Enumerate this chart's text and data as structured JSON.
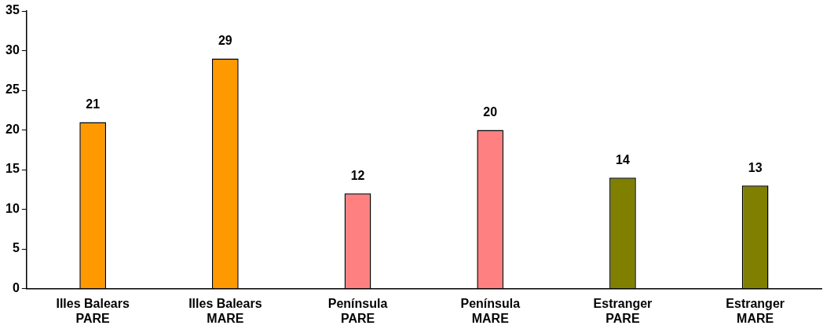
{
  "chart_data": {
    "type": "bar",
    "categories": [
      "Illes Balears\nPARE",
      "Illes Balears\nMARE",
      "Península\nPARE",
      "Península\nMARE",
      "Estranger\nPARE",
      "Estranger\nMARE"
    ],
    "values": [
      21,
      29,
      12,
      20,
      14,
      13
    ],
    "colors": [
      "#ff9900",
      "#ff9900",
      "#ff8080",
      "#ff8080",
      "#808000",
      "#808000"
    ],
    "ylim": [
      0,
      35
    ],
    "yticks": [
      0,
      5,
      10,
      15,
      20,
      25,
      30,
      35
    ],
    "grid": false,
    "legend": false,
    "data_labels": true
  }
}
